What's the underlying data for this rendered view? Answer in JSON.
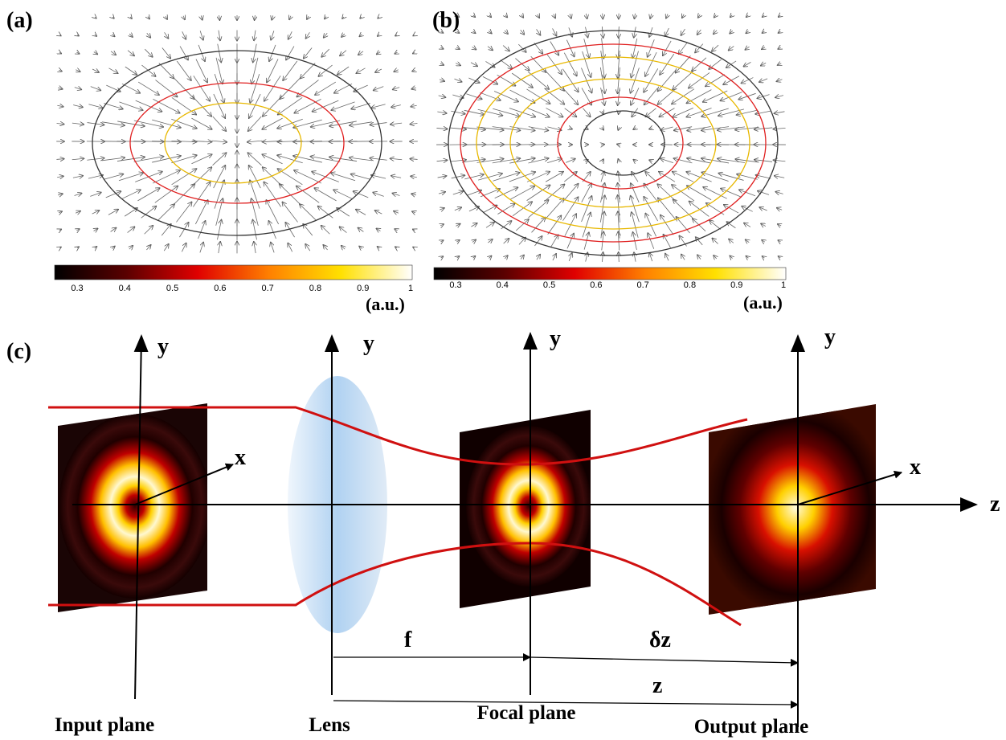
{
  "panels": [
    {
      "label": "(a)",
      "colorbar": {
        "ticks": [
          "0.3",
          "0.4",
          "0.5",
          "0.6",
          "0.7",
          "0.8",
          "0.9",
          "1"
        ],
        "unit": "(a.u.)"
      }
    },
    {
      "label": "(b)",
      "colorbar": {
        "ticks": [
          "0.3",
          "0.4",
          "0.5",
          "0.6",
          "0.7",
          "0.8",
          "0.9",
          "1"
        ],
        "unit": "(a.u.)"
      }
    }
  ],
  "schematic": {
    "label": "(c)",
    "y_labels": [
      "y",
      "y",
      "y",
      "y"
    ],
    "x_labels": [
      "x",
      "x"
    ],
    "z_label": "z",
    "distances": [
      "f",
      "δz",
      "z"
    ],
    "planes": [
      "Input plane",
      "Lens",
      "Focal plane",
      "Output plane"
    ]
  }
}
